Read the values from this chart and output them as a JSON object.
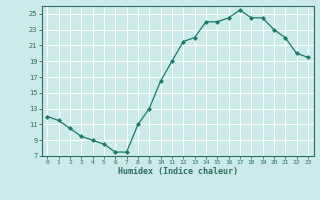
{
  "x": [
    0,
    1,
    2,
    3,
    4,
    5,
    6,
    7,
    8,
    9,
    10,
    11,
    12,
    13,
    14,
    15,
    16,
    17,
    18,
    19,
    20,
    21,
    22,
    23
  ],
  "y": [
    12,
    11.5,
    10.5,
    9.5,
    9,
    8.5,
    7.5,
    7.5,
    11,
    13,
    16.5,
    19,
    21.5,
    22,
    24,
    24,
    24.5,
    25.5,
    24.5,
    24.5,
    23,
    22,
    20,
    19.5
  ],
  "line_color": "#1a7a6e",
  "marker_color": "#1a7a6e",
  "bg_color": "#cceae8",
  "grid_color": "#ffffff",
  "axis_color": "#2a6e65",
  "xlabel": "Humidex (Indice chaleur)",
  "xlim": [
    -0.5,
    23.5
  ],
  "ylim": [
    7,
    26
  ],
  "yticks": [
    7,
    9,
    11,
    13,
    15,
    17,
    19,
    21,
    23,
    25
  ],
  "xticks": [
    0,
    1,
    2,
    3,
    4,
    5,
    6,
    7,
    8,
    9,
    10,
    11,
    12,
    13,
    14,
    15,
    16,
    17,
    18,
    19,
    20,
    21,
    22,
    23
  ]
}
